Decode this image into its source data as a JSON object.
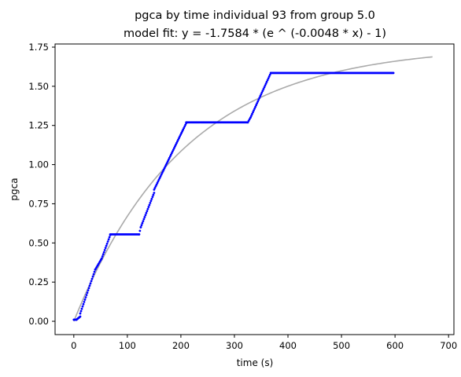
{
  "chart_data": {
    "type": "scatter",
    "title": "pgca by time individual 93 from group 5.0",
    "subtitle": "model fit: y = -1.7584 * (e ^ (-0.0048 * x) - 1)",
    "xlabel": "time (s)",
    "ylabel": "pgca",
    "xlim": [
      -35,
      710
    ],
    "ylim": [
      -0.085,
      1.77
    ],
    "xticks": [
      0,
      100,
      200,
      300,
      400,
      500,
      600,
      700
    ],
    "yticks": [
      0.0,
      0.25,
      0.5,
      0.75,
      1.0,
      1.25,
      1.5,
      1.75
    ],
    "ytick_labels": [
      "0.00",
      "0.25",
      "0.50",
      "0.75",
      "1.00",
      "1.25",
      "1.50",
      "1.75"
    ],
    "grid": false,
    "legend": "none",
    "colors": {
      "observed": "#0000ff",
      "fit": "#aaaaaa"
    },
    "fit": {
      "a": -1.7584,
      "b": -0.0048,
      "x_range": [
        0,
        670
      ]
    },
    "observed_segments": [
      {
        "x": [
          0,
          5
        ],
        "y": [
          0.01,
          0.01
        ]
      },
      {
        "x": [
          5,
          12
        ],
        "y": [
          0.01,
          0.03
        ]
      },
      {
        "x": [
          12,
          40
        ],
        "y": [
          0.05,
          0.33
        ]
      },
      {
        "x": [
          40,
          52
        ],
        "y": [
          0.33,
          0.4
        ]
      },
      {
        "x": [
          52,
          68
        ],
        "y": [
          0.4,
          0.55
        ]
      },
      {
        "x": [
          68,
          122
        ],
        "y": [
          0.555,
          0.555
        ]
      },
      {
        "x": [
          122,
          125
        ],
        "y": [
          0.555,
          0.6
        ]
      },
      {
        "x": [
          125,
          150
        ],
        "y": [
          0.6,
          0.82
        ]
      },
      {
        "x": [
          150,
          210
        ],
        "y": [
          0.84,
          1.265
        ]
      },
      {
        "x": [
          210,
          325
        ],
        "y": [
          1.27,
          1.27
        ]
      },
      {
        "x": [
          325,
          330
        ],
        "y": [
          1.27,
          1.3
        ]
      },
      {
        "x": [
          330,
          368
        ],
        "y": [
          1.3,
          1.585
        ]
      },
      {
        "x": [
          368,
          597
        ],
        "y": [
          1.585,
          1.585
        ]
      }
    ]
  }
}
